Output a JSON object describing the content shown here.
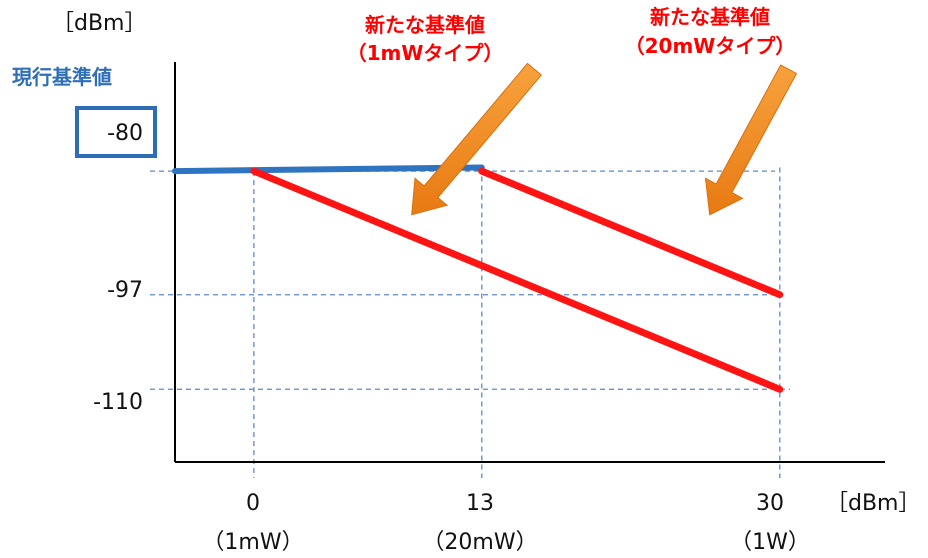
{
  "chart_data": {
    "type": "line",
    "x_unit": "［dBm］",
    "y_unit": "［dBm］",
    "x_ticks": [
      {
        "value": 0,
        "label": "0",
        "sublabel": "（1mW）"
      },
      {
        "value": 13,
        "label": "13",
        "sublabel": "（20mW）"
      },
      {
        "value": 30,
        "label": "30",
        "sublabel": "（1W）"
      }
    ],
    "y_ticks": [
      {
        "value": -80,
        "label": "-80"
      },
      {
        "value": -97,
        "label": "-97"
      },
      {
        "value": -110,
        "label": "-110"
      }
    ],
    "xlim": [
      -4.5,
      36
    ],
    "ylim": [
      -120,
      -65
    ],
    "grid": "dashed at tick values",
    "series": [
      {
        "name": "現行基準値",
        "color": "#2e74c0",
        "points": [
          [
            -4.5,
            -80
          ],
          [
            13,
            -79.5
          ]
        ]
      },
      {
        "name": "新たな基準値（1mWタイプ）",
        "color": "#ff1414",
        "points": [
          [
            0,
            -80
          ],
          [
            30,
            -110
          ]
        ]
      },
      {
        "name": "新たな基準値（20mWタイプ）",
        "color": "#ff1414",
        "points": [
          [
            13,
            -80
          ],
          [
            30,
            -97
          ]
        ]
      }
    ],
    "annotations": [
      {
        "lines": [
          "新たな基準値",
          "（1mWタイプ）"
        ],
        "color": "#ff0000",
        "arrow_color": "#f08a1c",
        "arrow_from": [
          16,
          -66
        ],
        "arrow_to": [
          9,
          -86
        ]
      },
      {
        "lines": [
          "新たな基準値",
          "（20mWタイプ）"
        ],
        "color": "#ff0000",
        "arrow_color": "#f08a1c",
        "arrow_from": [
          30.5,
          -66
        ],
        "arrow_to": [
          26,
          -86
        ]
      },
      {
        "lines": [
          "現行基準値"
        ],
        "color": "#2f6fb8",
        "boxed_tick": "-80"
      }
    ]
  }
}
